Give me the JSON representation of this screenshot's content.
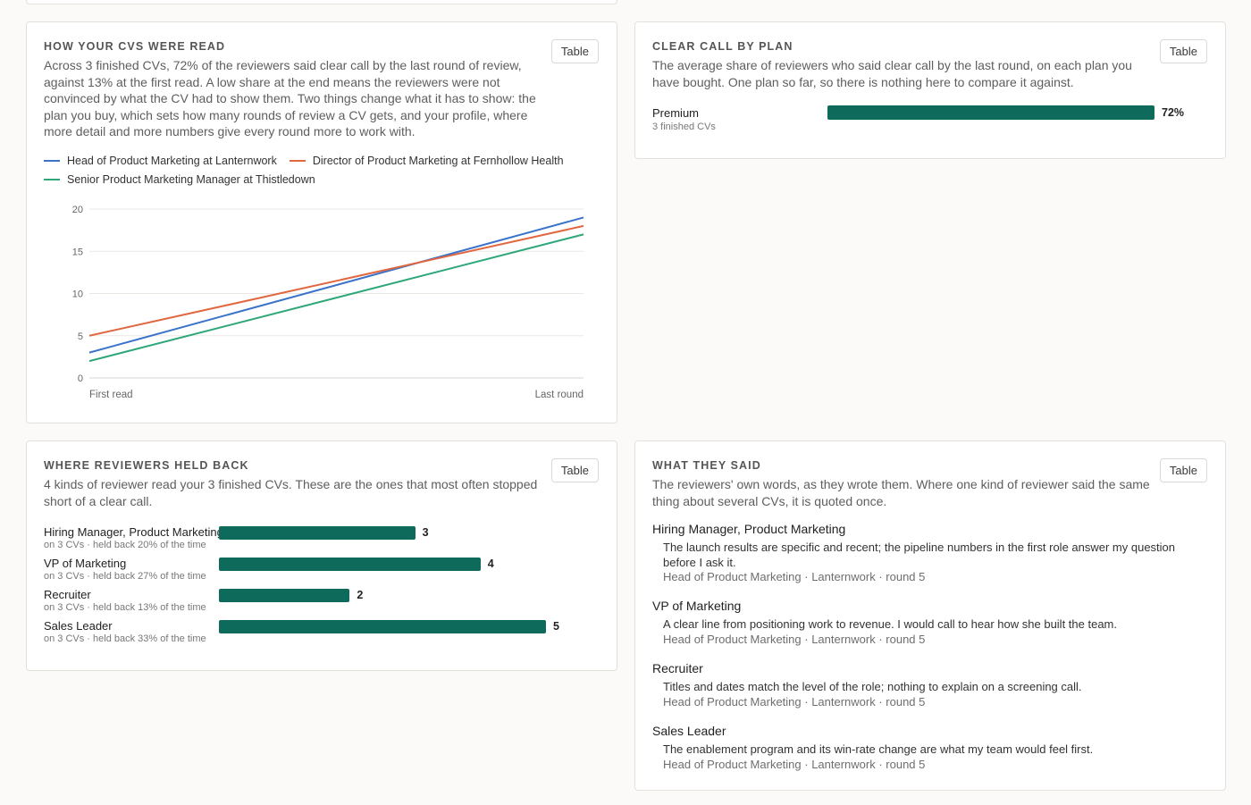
{
  "read": {
    "title": "HOW YOUR CVS WERE READ",
    "description": "Across 3 finished CVs, 72% of the reviewers said clear call by the last round of review, against 13% at the first read. A low share at the end means the reviewers were not convinced by what the CV had to show them. Two things change what it has to show: the plan you buy, which sets how many rounds of review a CV gets, and your profile, where more detail and more numbers give every round more to work with.",
    "table_label": "Table"
  },
  "chart_data": {
    "type": "line",
    "x": [
      "First read",
      "Last round"
    ],
    "ylim": [
      0,
      20
    ],
    "yticks": [
      0,
      5,
      10,
      15,
      20
    ],
    "grid": true,
    "legend_position": "top",
    "series": [
      {
        "name": "Head of Product Marketing at Lanternwork",
        "color": "#3a73c9",
        "values": [
          3,
          19
        ]
      },
      {
        "name": "Director of Product Marketing at Fernhollow Health",
        "color": "#e0673f",
        "values": [
          5,
          18
        ]
      },
      {
        "name": "Senior Product Marketing Manager at Thistledown",
        "color": "#2ea779",
        "values": [
          2,
          17
        ]
      }
    ]
  },
  "plan": {
    "title": "CLEAR CALL BY PLAN",
    "description": "The average share of reviewers who said clear call by the last round, on each plan you have bought. One plan so far, so there is nothing here to compare it against.",
    "table_label": "Table",
    "rows": [
      {
        "label": "Premium",
        "sub": "3 finished CVs",
        "value": 72,
        "value_label": "72%"
      }
    ]
  },
  "held": {
    "title": "WHERE REVIEWERS HELD BACK",
    "description": "4 kinds of reviewer read your 3 finished CVs. These are the ones that most often stopped short of a clear call.",
    "table_label": "Table",
    "max": 5,
    "rows": [
      {
        "label": "Hiring Manager, Product Marketing",
        "sub": "on 3 CVs · held back 20% of the time",
        "value": 3,
        "value_label": "3"
      },
      {
        "label": "VP of Marketing",
        "sub": "on 3 CVs · held back 27% of the time",
        "value": 4,
        "value_label": "4"
      },
      {
        "label": "Recruiter",
        "sub": "on 3 CVs · held back 13% of the time",
        "value": 2,
        "value_label": "2"
      },
      {
        "label": "Sales Leader",
        "sub": "on 3 CVs · held back 33% of the time",
        "value": 5,
        "value_label": "5"
      }
    ]
  },
  "said": {
    "title": "WHAT THEY SAID",
    "description": "The reviewers' own words, as they wrote them. Where one kind of reviewer said the same thing about several CVs, it is quoted once.",
    "table_label": "Table",
    "quotes": [
      {
        "reviewer": "Hiring Manager, Product Marketing",
        "text": "The launch results are specific and recent; the pipeline numbers in the first role answer my question before I ask it.",
        "meta": "Head of Product Marketing · Lanternwork · round 5"
      },
      {
        "reviewer": "VP of Marketing",
        "text": "A clear line from positioning work to revenue. I would call to hear how she built the team.",
        "meta": "Head of Product Marketing · Lanternwork · round 5"
      },
      {
        "reviewer": "Recruiter",
        "text": "Titles and dates match the level of the role; nothing to explain on a screening call.",
        "meta": "Head of Product Marketing · Lanternwork · round 5"
      },
      {
        "reviewer": "Sales Leader",
        "text": "The enablement program and its win-rate change are what my team would feel first.",
        "meta": "Head of Product Marketing · Lanternwork · round 5"
      }
    ]
  }
}
